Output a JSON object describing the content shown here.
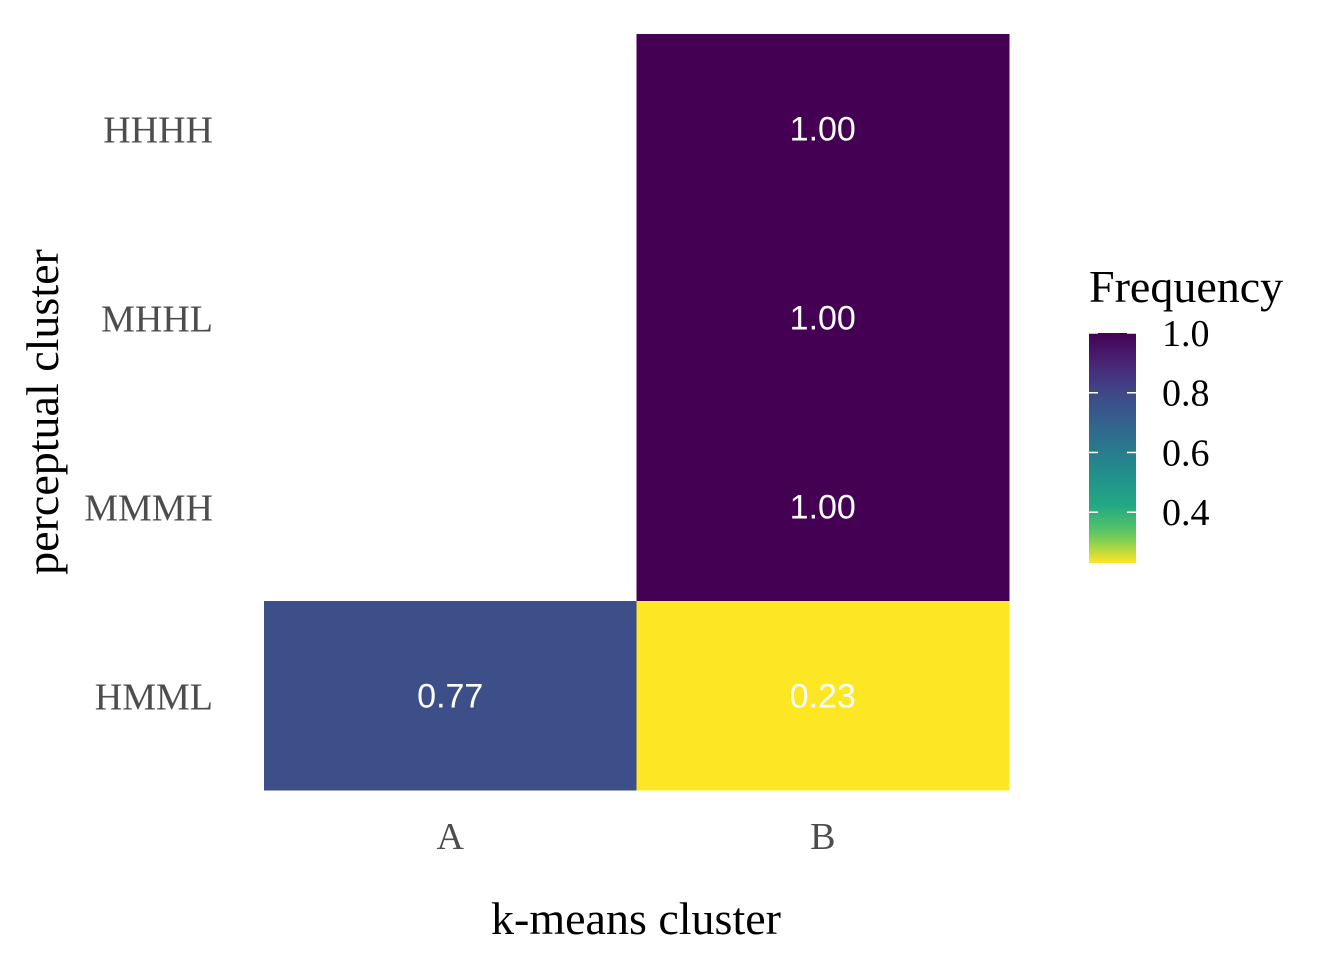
{
  "chart_data": {
    "type": "heatmap",
    "xlabel": "k-means cluster",
    "ylabel": "perceptual cluster",
    "x_categories": [
      "A",
      "B"
    ],
    "y_categories": [
      "HHHH",
      "MHHL",
      "MMMH",
      "HMML"
    ],
    "cells": [
      {
        "x": "B",
        "y": "HHHH",
        "value": 1.0,
        "label": "1.00"
      },
      {
        "x": "B",
        "y": "MHHL",
        "value": 1.0,
        "label": "1.00"
      },
      {
        "x": "B",
        "y": "MMMH",
        "value": 1.0,
        "label": "1.00"
      },
      {
        "x": "A",
        "y": "HMML",
        "value": 0.77,
        "label": "0.77"
      },
      {
        "x": "B",
        "y": "HMML",
        "value": 0.23,
        "label": "0.23"
      }
    ],
    "legend": {
      "title": "Frequency",
      "ticks": [
        1.0,
        0.8,
        0.6,
        0.4
      ],
      "tick_labels": [
        "1.0",
        "0.8",
        "0.6",
        "0.4"
      ],
      "range": [
        0.23,
        1.0
      ],
      "colormap": "viridis",
      "placement": "right"
    },
    "grid": false
  }
}
